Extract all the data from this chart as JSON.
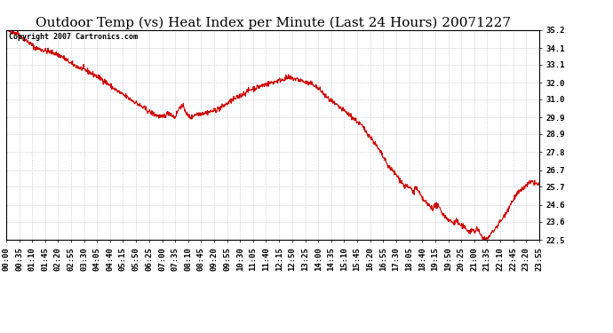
{
  "title": "Outdoor Temp (vs) Heat Index per Minute (Last 24 Hours) 20071227",
  "copyright_text": "Copyright 2007 Cartronics.com",
  "line_color": "#cc0000",
  "background_color": "#ffffff",
  "grid_color": "#cccccc",
  "y_min": 22.5,
  "y_max": 35.2,
  "y_ticks": [
    22.5,
    23.6,
    24.6,
    25.7,
    26.7,
    27.8,
    28.9,
    29.9,
    31.0,
    32.0,
    33.1,
    34.1,
    35.2
  ],
  "x_tick_labels": [
    "00:00",
    "00:35",
    "01:10",
    "01:45",
    "02:20",
    "02:55",
    "03:30",
    "04:05",
    "04:40",
    "05:15",
    "05:50",
    "06:25",
    "07:00",
    "07:35",
    "08:10",
    "08:45",
    "09:20",
    "09:55",
    "10:30",
    "11:05",
    "11:40",
    "12:15",
    "12:50",
    "13:25",
    "14:00",
    "14:35",
    "15:10",
    "15:45",
    "16:20",
    "16:55",
    "17:30",
    "18:05",
    "18:40",
    "19:15",
    "19:50",
    "20:25",
    "21:00",
    "21:35",
    "22:10",
    "22:45",
    "23:20",
    "23:55"
  ],
  "title_fontsize": 11,
  "tick_fontsize": 6.5,
  "copyright_fontsize": 6,
  "figwidth": 6.9,
  "figheight": 3.75,
  "dpi": 100
}
